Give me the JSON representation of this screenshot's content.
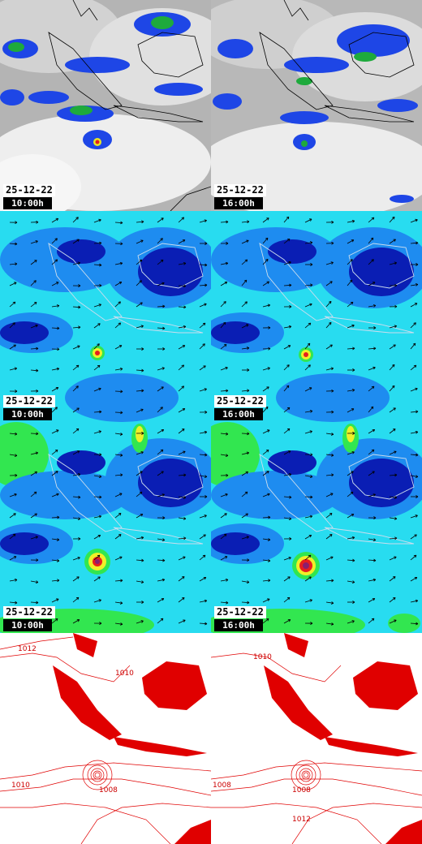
{
  "panels": [
    {
      "row": 0,
      "col": 0,
      "kind": "satellite",
      "date": "25-12-22",
      "time": "10:00h"
    },
    {
      "row": 0,
      "col": 1,
      "kind": "satellite",
      "date": "25-12-22",
      "time": "16:00h"
    },
    {
      "row": 1,
      "col": 0,
      "kind": "wind-low",
      "date": "25-12-22",
      "time": "10:00h"
    },
    {
      "row": 1,
      "col": 1,
      "kind": "wind-low",
      "date": "25-12-22",
      "time": "16:00h"
    },
    {
      "row": 2,
      "col": 0,
      "kind": "wind-high",
      "date": "25-12-22",
      "time": "10:00h"
    },
    {
      "row": 2,
      "col": 1,
      "kind": "wind-high",
      "date": "25-12-22",
      "time": "16:00h"
    },
    {
      "row": 3,
      "col": 0,
      "kind": "pressure",
      "date": "",
      "time": "",
      "isobar_labels": [
        "1012",
        "1010",
        "1008",
        "1010"
      ]
    },
    {
      "row": 3,
      "col": 1,
      "kind": "pressure",
      "date": "",
      "time": "",
      "isobar_labels": [
        "1010",
        "1008",
        "1008",
        "1012"
      ]
    }
  ],
  "colors": {
    "cloud": "#c8c8c8",
    "rain_low": "#1e46e6",
    "rain_mid": "#1eaa3c",
    "wind_dark": "#0a1eb4",
    "wind_mid": "#1e8cf0",
    "wind_light": "#28dcf0",
    "wind_green": "#32e650",
    "wind_yellow": "#f0f028",
    "wind_red": "#e61e1e",
    "isobar": "#e00000"
  }
}
